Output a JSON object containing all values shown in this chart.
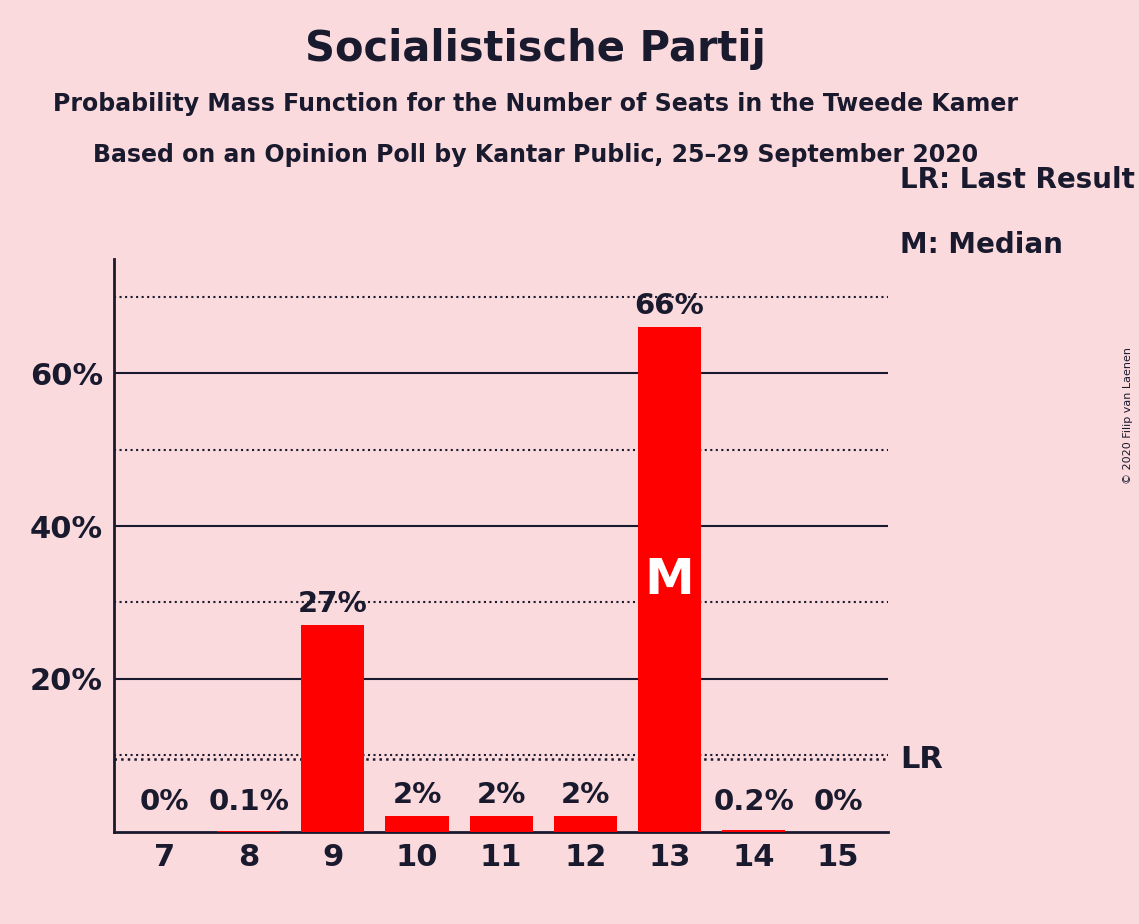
{
  "title": "Socialistische Partij",
  "subtitle1": "Probability Mass Function for the Number of Seats in the Tweede Kamer",
  "subtitle2": "Based on an Opinion Poll by Kantar Public, 25–29 September 2020",
  "copyright": "© 2020 Filip van Laenen",
  "categories": [
    7,
    8,
    9,
    10,
    11,
    12,
    13,
    14,
    15
  ],
  "values": [
    0.0,
    0.1,
    27.0,
    2.0,
    2.0,
    2.0,
    66.0,
    0.2,
    0.0
  ],
  "bar_color": "#FF0000",
  "background_color": "#FADADD",
  "label_color": "#1a1a2e",
  "bar_labels": [
    "0%",
    "0.1%",
    "27%",
    "2%",
    "2%",
    "2%",
    "66%",
    "0.2%",
    "0%"
  ],
  "median_bar": 13,
  "last_result_value": 9.5,
  "legend_lr": "LR: Last Result",
  "legend_m": "M: Median",
  "median_label": "M",
  "lr_label": "LR",
  "ylim": [
    0,
    75
  ],
  "solid_yticks": [
    20,
    40,
    60
  ],
  "solid_ytick_labels": [
    "20%",
    "40%",
    "60%"
  ],
  "dotted_grid": [
    10,
    30,
    50,
    70
  ],
  "title_fontsize": 30,
  "subtitle_fontsize": 17,
  "bar_label_fontsize": 21,
  "axis_tick_fontsize": 22,
  "legend_fontsize": 20,
  "median_label_fontsize": 36,
  "lr_fontsize": 22
}
